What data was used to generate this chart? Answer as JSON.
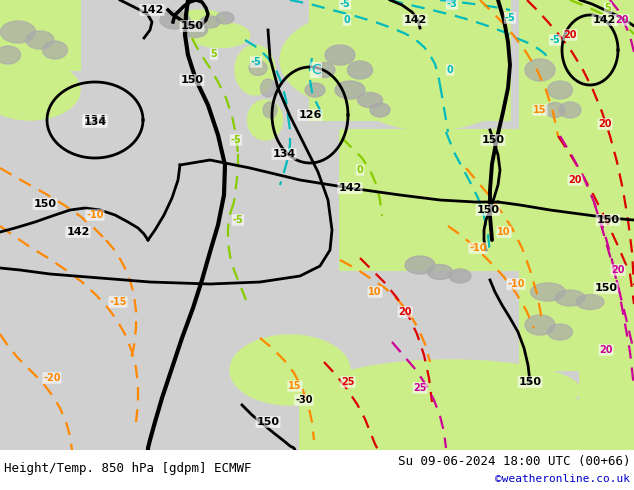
{
  "title_left": "Height/Temp. 850 hPa [gdpm] ECMWF",
  "title_right": "Su 09-06-2024 18:00 UTC (00+66)",
  "watermark": "©weatheronline.co.uk",
  "fig_width": 6.34,
  "fig_height": 4.9,
  "dpi": 100,
  "font_size_bottom": 9,
  "font_size_watermark": 8,
  "watermark_color": "#0000cc",
  "text_color_bottom": "#000000",
  "bottom_bar_color": "#ffffff",
  "bottom_bar_height": 40,
  "col_h": "#000000",
  "col_tc": "#00bbbb",
  "col_tg": "#88cc00",
  "col_to": "#ff8800",
  "col_tr": "#dd0000",
  "col_tm": "#cc0099",
  "land_green": "#ccee88",
  "land_gray": "#aaaaaa",
  "sea_gray": "#d0d0d0",
  "sea_light": "#e0e0e0"
}
